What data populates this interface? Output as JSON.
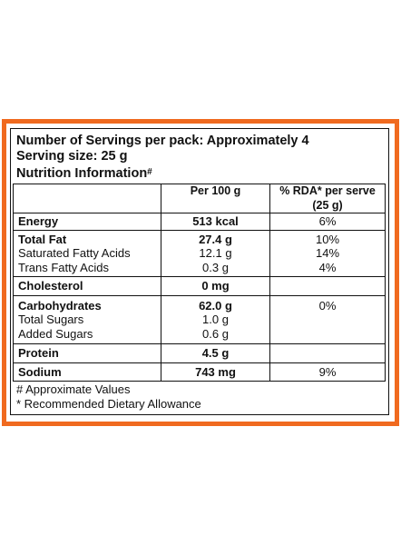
{
  "header": {
    "servings": "Number of Servings per pack: Approximately 4",
    "serving_size": "Serving size: 25 g",
    "nutrition_info": "Nutrition Information",
    "nutrition_info_mark": "#"
  },
  "table": {
    "columns": [
      "",
      "Per 100 g",
      "% RDA* per serve (25 g)"
    ],
    "rows": [
      {
        "name": "Energy",
        "per100": "513 kcal",
        "rda": "6%",
        "bold": true
      },
      {
        "name": "Total Fat",
        "per100": "27.4 g",
        "rda": "10%",
        "bold": true
      },
      {
        "name": "Saturated Fatty Acids",
        "per100": "12.1 g",
        "rda": "14%",
        "bold": false
      },
      {
        "name": "Trans Fatty Acids",
        "per100": "0.3 g",
        "rda": "4%",
        "bold": false
      },
      {
        "name": "Cholesterol",
        "per100": "0 mg",
        "rda": "",
        "bold": true
      },
      {
        "name": "Carbohydrates",
        "per100": "62.0 g",
        "rda": "",
        "bold": true
      },
      {
        "name": "Total Sugars",
        "per100": "1.0 g",
        "rda": "",
        "bold": false
      },
      {
        "name": "Added Sugars",
        "per100": "0.6 g",
        "rda": "0%",
        "bold": false
      },
      {
        "name": "Protein",
        "per100": "4.5 g",
        "rda": "",
        "bold": true
      },
      {
        "name": "Sodium",
        "per100": "743 mg",
        "rda": "9%",
        "bold": true
      }
    ]
  },
  "footnotes": [
    "# Approximate Values",
    "* Recommended Dietary Allowance"
  ],
  "colors": {
    "border_accent": "#f06a1f",
    "text": "#111111"
  }
}
